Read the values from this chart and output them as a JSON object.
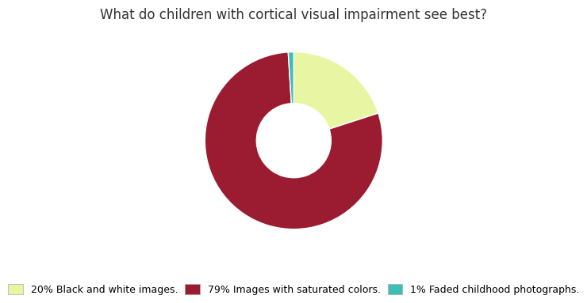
{
  "title": "What do children with cortical visual impairment see best?",
  "slices": [
    20,
    79,
    1
  ],
  "labels": [
    "20% Black and white images.",
    "79% Images with saturated colors.",
    "1% Faded childhood photographs."
  ],
  "colors": [
    "#e8f5a3",
    "#9b1b30",
    "#3dbfb8"
  ],
  "startangle": 90,
  "donut_width": 0.58,
  "background_color": "#ffffff",
  "title_fontsize": 12,
  "legend_fontsize": 9
}
